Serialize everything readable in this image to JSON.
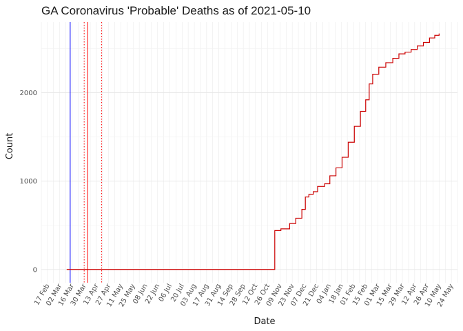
{
  "chart_data": {
    "type": "line",
    "title": "GA Coronavirus 'Probable' Deaths as of 2021-05-10",
    "xlabel": "Date",
    "ylabel": "Count",
    "xlim": [
      "2020-02-10",
      "2021-05-31"
    ],
    "ylim": [
      -150,
      2800
    ],
    "grid": true,
    "x_tick_labels": [
      "17 Feb",
      "02 Mar",
      "16 Mar",
      "30 Mar",
      "13 Apr",
      "27 Apr",
      "11 May",
      "25 May",
      "08 Jun",
      "22 Jun",
      "06 Jul",
      "20 Jul",
      "03 Aug",
      "17 Aug",
      "31 Aug",
      "14 Sep",
      "28 Sep",
      "12 Oct",
      "26 Oct",
      "09 Nov",
      "23 Nov",
      "07 Dec",
      "21 Dec",
      "04 Jan",
      "18 Jan",
      "01 Feb",
      "15 Feb",
      "01 Mar",
      "15 Mar",
      "29 Mar",
      "12 Apr",
      "26 Apr",
      "10 May",
      "24 May"
    ],
    "y_ticks": [
      0,
      1000,
      2000
    ],
    "vertical_lines": [
      {
        "date": "2020-03-14",
        "color": "#0000ff",
        "style": "solid"
      },
      {
        "date": "2020-04-03",
        "color": "#ff0000",
        "style": "solid"
      },
      {
        "date": "2020-03-30",
        "color": "#ff0000",
        "style": "dotted"
      },
      {
        "date": "2020-04-19",
        "color": "#ff0000",
        "style": "dotted"
      }
    ],
    "series": [
      {
        "color": "#cc0000",
        "points": [
          [
            "2020-03-10",
            0
          ],
          [
            "2020-11-02",
            0
          ],
          [
            "2020-11-03",
            440
          ],
          [
            "2020-11-10",
            460
          ],
          [
            "2020-11-20",
            520
          ],
          [
            "2020-11-27",
            580
          ],
          [
            "2020-12-04",
            680
          ],
          [
            "2020-12-08",
            820
          ],
          [
            "2020-12-12",
            850
          ],
          [
            "2020-12-17",
            880
          ],
          [
            "2020-12-22",
            940
          ],
          [
            "2020-12-30",
            970
          ],
          [
            "2021-01-05",
            1060
          ],
          [
            "2021-01-12",
            1150
          ],
          [
            "2021-01-19",
            1270
          ],
          [
            "2021-01-26",
            1440
          ],
          [
            "2021-02-02",
            1620
          ],
          [
            "2021-02-09",
            1790
          ],
          [
            "2021-02-15",
            1920
          ],
          [
            "2021-02-19",
            2100
          ],
          [
            "2021-02-23",
            2210
          ],
          [
            "2021-03-02",
            2290
          ],
          [
            "2021-03-10",
            2340
          ],
          [
            "2021-03-18",
            2390
          ],
          [
            "2021-03-25",
            2440
          ],
          [
            "2021-04-01",
            2460
          ],
          [
            "2021-04-08",
            2490
          ],
          [
            "2021-04-15",
            2530
          ],
          [
            "2021-04-22",
            2570
          ],
          [
            "2021-04-29",
            2620
          ],
          [
            "2021-05-05",
            2650
          ],
          [
            "2021-05-10",
            2670
          ]
        ]
      }
    ]
  }
}
